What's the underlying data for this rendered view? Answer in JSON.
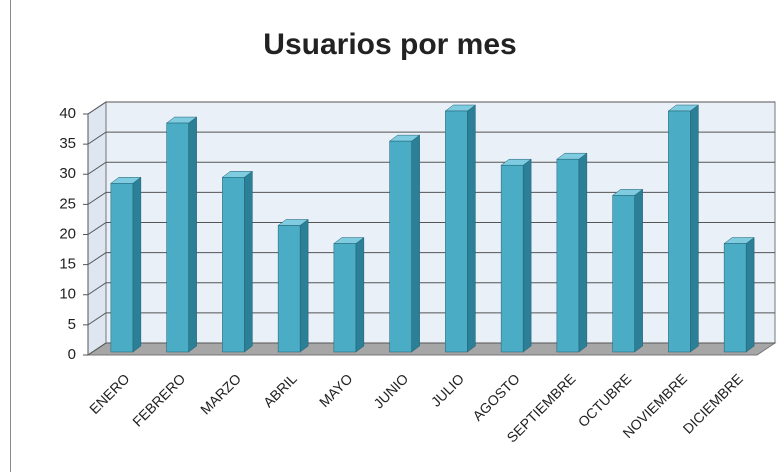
{
  "chart_data": {
    "type": "bar3d",
    "title": "Usuarios por mes",
    "categories": [
      "ENERO",
      "FEBRERO",
      "MARZO",
      "ABRIL",
      "MAYO",
      "JUNIO",
      "JULIO",
      "AGOSTO",
      "SEPTIEMBRE",
      "OCTUBRE",
      "NOVIEMBRE",
      "DICIEMBRE"
    ],
    "values": [
      28,
      38,
      29,
      21,
      18,
      35,
      40,
      31,
      32,
      26,
      40,
      18
    ],
    "color": "#4bacc6",
    "ylim": [
      0,
      40
    ],
    "yticks": [
      0,
      5,
      10,
      15,
      20,
      25,
      30,
      35,
      40
    ],
    "grid": true
  }
}
